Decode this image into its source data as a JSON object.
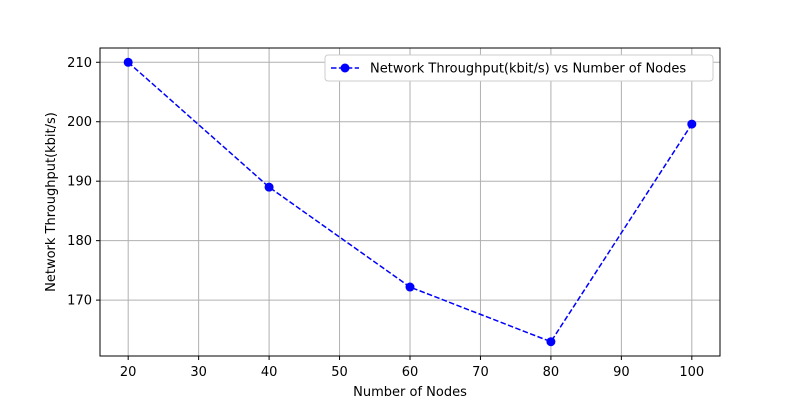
{
  "chart_data": {
    "type": "line",
    "xlabel": "Number of Nodes",
    "ylabel": "Network Throughput(kbit/s)",
    "x": [
      20,
      40,
      60,
      80,
      100
    ],
    "series": [
      {
        "name": "Network Throughput(kbit/s) vs Number of Nodes",
        "values": [
          210.0,
          189.0,
          172.2,
          163.0,
          199.6
        ],
        "color": "#0000ff",
        "line_style": "dashed",
        "marker": "circle"
      }
    ],
    "xlim": [
      16,
      104
    ],
    "ylim": [
      160.6,
      212.4
    ],
    "xticks": [
      20,
      30,
      40,
      50,
      60,
      70,
      80,
      90,
      100
    ],
    "yticks": [
      170,
      180,
      190,
      200,
      210
    ],
    "grid": true,
    "legend_position": "top-right"
  }
}
